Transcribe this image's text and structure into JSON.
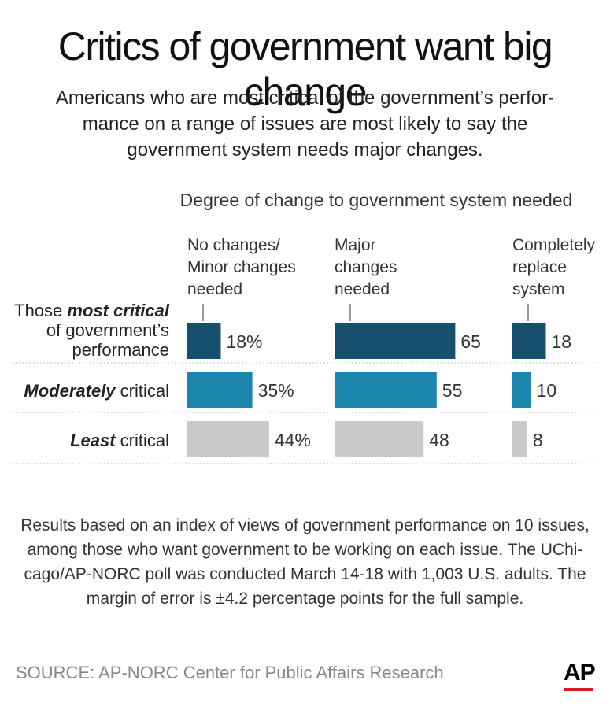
{
  "title": "Critics of government want big change",
  "subtitle_lines": [
    "Americans who are most critical of the government’s perfor-",
    "mance on a range of issues are most likely to say the",
    "government system needs major changes."
  ],
  "chart_data": {
    "type": "bar",
    "title": "Degree of change to government system needed",
    "columns": [
      {
        "label_lines": [
          "No changes/",
          "Minor changes",
          "needed"
        ],
        "suffix": "%"
      },
      {
        "label_lines": [
          "Major",
          "changes",
          "needed"
        ],
        "suffix": ""
      },
      {
        "label_lines": [
          "Completely",
          "replace",
          "system"
        ],
        "suffix": ""
      }
    ],
    "categories": [
      "Those most critical of government’s performance",
      "Moderately critical",
      "Least critical"
    ],
    "row_labels": [
      {
        "lines": [
          [
            {
              "t": "Those ",
              "s": "normal"
            },
            {
              "t": "most critical",
              "s": "bi"
            }
          ],
          [
            {
              "t": "of government’s",
              "s": "normal"
            }
          ],
          [
            {
              "t": "performance",
              "s": "normal"
            }
          ]
        ]
      },
      {
        "lines": [
          [
            {
              "t": "Moderately",
              "s": "bi"
            },
            {
              "t": " critical",
              "s": "normal"
            }
          ]
        ]
      },
      {
        "lines": [
          [
            {
              "t": "Least",
              "s": "bi"
            },
            {
              "t": " critical",
              "s": "normal"
            }
          ]
        ]
      }
    ],
    "series": [
      {
        "name": "No changes/Minor changes needed",
        "values": [
          18,
          35,
          44
        ]
      },
      {
        "name": "Major changes needed",
        "values": [
          65,
          55,
          48
        ]
      },
      {
        "name": "Completely replace system",
        "values": [
          18,
          10,
          8
        ]
      }
    ],
    "row_colors": [
      "#17506e",
      "#1a86ae",
      "#c8c9ca"
    ]
  },
  "footnote_lines": [
    "Results based on an index of views of government performance on 10 issues,",
    "among those who want government to be working on each issue. The UChi-",
    "cago/AP-NORC poll was conducted March 14-18 with 1,003 U.S. adults. The",
    "margin of error is ±4.2 percentage points for the full sample."
  ],
  "source": "SOURCE: AP-NORC Center for Public Affairs Research",
  "logo": "AP"
}
